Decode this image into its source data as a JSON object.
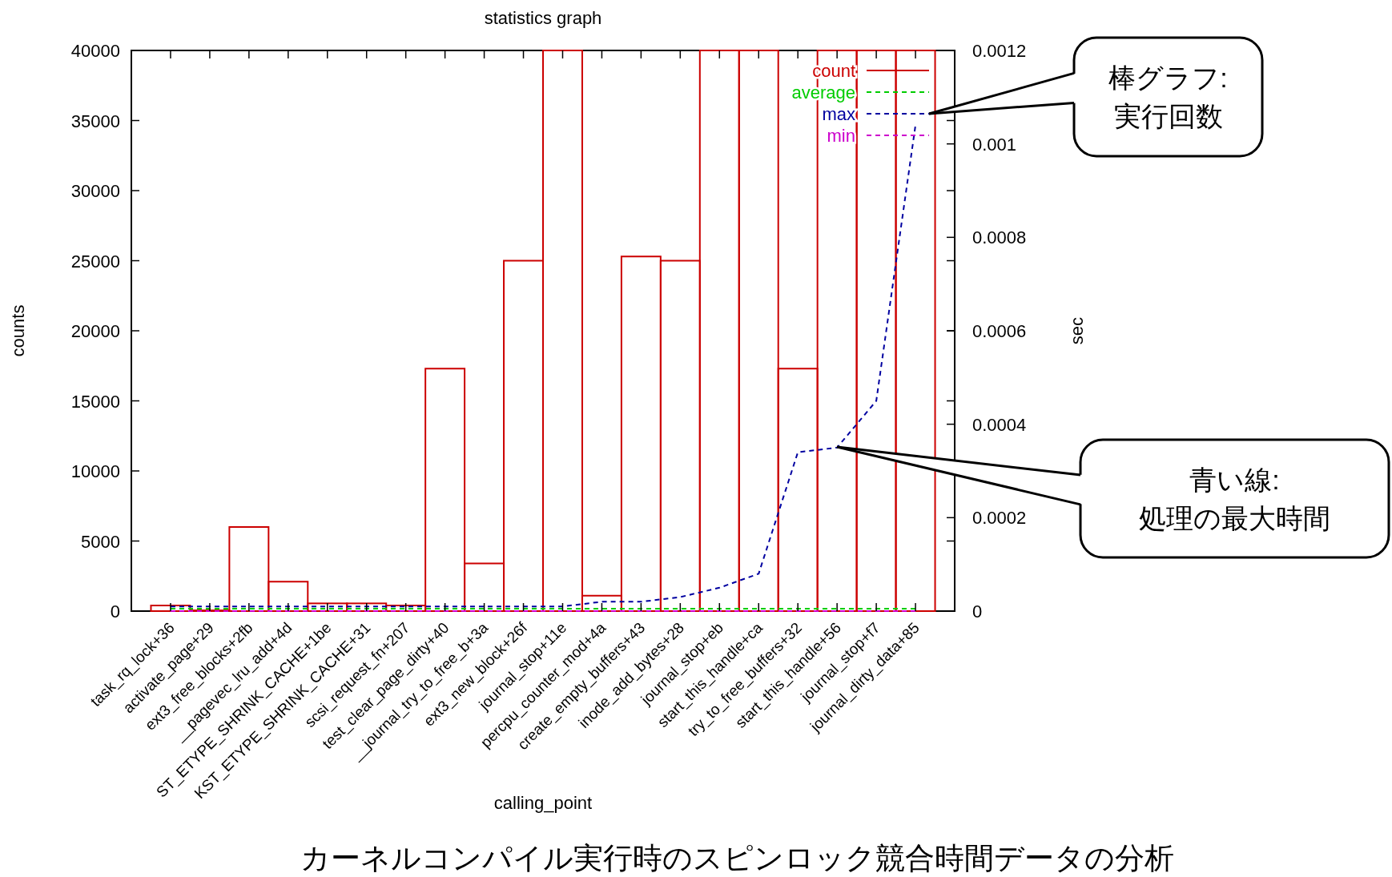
{
  "chart_data": {
    "type": "bar",
    "title": "statistics graph",
    "xlabel": "calling_point",
    "ylabel": "counts",
    "y2label": "sec",
    "categories": [
      "task_rq_lock+36",
      "activate_page+29",
      "ext3_free_blocks+2fb",
      "__pagevec_lru_add+4d",
      "ST_ETYPE_SHRINK_CACHE+1be",
      "KST_ETYPE_SHRINK_CACHE+31",
      "scsi_request_fn+207",
      "test_clear_page_dirty+40",
      "__journal_try_to_free_b+3a",
      "ext3_new_block+26f",
      "journal_stop+11e",
      "percpu_counter_mod+4a",
      "create_empty_buffers+43",
      "inode_add_bytes+28",
      "journal_stop+eb",
      "start_this_handle+ca",
      "try_to_free_buffers+32",
      "start_this_handle+56",
      "journal_stop+f7",
      "journal_dirty_data+85"
    ],
    "series": [
      {
        "name": "count",
        "color": "#cc0000",
        "values": [
          400,
          50,
          6000,
          2100,
          550,
          550,
          400,
          17300,
          3400,
          25000,
          40000,
          1100,
          25300,
          25000,
          40000,
          40000,
          17300,
          40000,
          40000,
          40000
        ]
      },
      {
        "name": "average",
        "type": "line",
        "axis": "y2",
        "color": "#00cc00",
        "values": [
          5e-06,
          5e-06,
          5e-06,
          5e-06,
          5e-06,
          5e-06,
          5e-06,
          5e-06,
          5e-06,
          5e-06,
          5e-06,
          5e-06,
          5e-06,
          5e-06,
          5e-06,
          5e-06,
          5e-06,
          5e-06,
          5e-06,
          5e-06
        ]
      },
      {
        "name": "max",
        "type": "line",
        "axis": "y2",
        "color": "#0000a0",
        "values": [
          1e-05,
          1e-05,
          1e-05,
          1e-05,
          1e-05,
          1e-05,
          1e-05,
          1e-05,
          1e-05,
          1e-05,
          1e-05,
          2e-05,
          2e-05,
          3e-05,
          5e-05,
          8e-05,
          0.00034,
          0.00035,
          0.00045,
          0.00104
        ]
      },
      {
        "name": "min",
        "type": "line",
        "axis": "y2",
        "color": "#cc00cc",
        "values": [
          0,
          0,
          0,
          0,
          0,
          0,
          0,
          0,
          0,
          0,
          0,
          0,
          0,
          0,
          0,
          0,
          0,
          0,
          0,
          0
        ]
      }
    ],
    "ylim": [
      0,
      40000
    ],
    "yticks": [
      0,
      5000,
      10000,
      15000,
      20000,
      25000,
      30000,
      35000,
      40000
    ],
    "y2lim": [
      0,
      0.0012
    ],
    "y2ticks": [
      0,
      0.0002,
      0.0004,
      0.0006,
      0.0008,
      0.001,
      0.0012
    ],
    "line_style": "dashed",
    "legend": "top right",
    "grid": false,
    "annotations": [
      "棒グラフ:\n実行回数",
      "青い線:\n処理の最大時間",
      "カーネルコンパイル実行時のスピンロック競合時間データの分析"
    ]
  }
}
